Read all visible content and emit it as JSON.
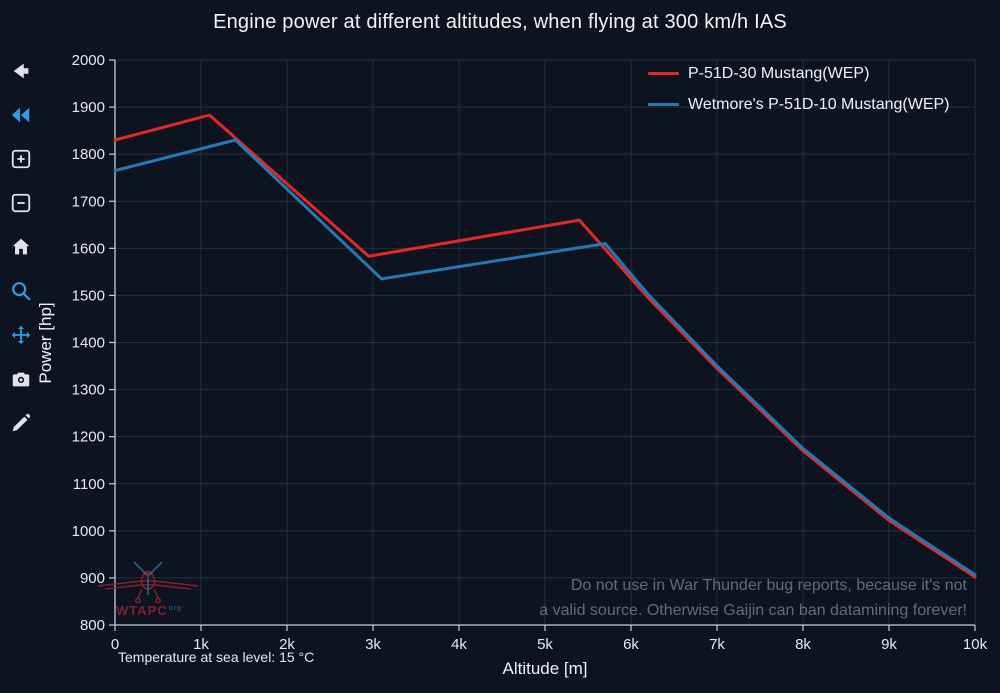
{
  "toolbar": {
    "icons": [
      "back-arrow",
      "double-chevron-left",
      "zoom-in",
      "zoom-out",
      "home",
      "magnifier",
      "pan-move",
      "camera",
      "pencil"
    ]
  },
  "chart_data": {
    "type": "line",
    "title": "Engine power at different altitudes, when flying at 300 km/h IAS",
    "xlabel": "Altitude [m]",
    "ylabel": "Power [hp]",
    "xlim": [
      0,
      10000
    ],
    "ylim": [
      800,
      2000
    ],
    "x_tick_step": 1000,
    "y_tick_step": 100,
    "x_ticks": [
      "0",
      "1k",
      "2k",
      "3k",
      "4k",
      "5k",
      "6k",
      "7k",
      "8k",
      "9k",
      "10k"
    ],
    "grid": true,
    "legend_position": "top-right-inside",
    "series": [
      {
        "name": "P-51D-30 Mustang(WEP)",
        "color": "#e12828",
        "points": [
          [
            0,
            1830
          ],
          [
            1100,
            1883
          ],
          [
            2950,
            1583
          ],
          [
            5400,
            1660
          ],
          [
            6200,
            1495
          ],
          [
            7000,
            1345
          ],
          [
            8000,
            1170
          ],
          [
            9000,
            1022
          ],
          [
            10000,
            902
          ]
        ]
      },
      {
        "name": "Wetmore's P-51D-10 Mustang(WEP)",
        "color": "#2479b4",
        "points": [
          [
            0,
            1765
          ],
          [
            1400,
            1830
          ],
          [
            3100,
            1535
          ],
          [
            5700,
            1610
          ],
          [
            6200,
            1502
          ],
          [
            7000,
            1350
          ],
          [
            8000,
            1175
          ],
          [
            9000,
            1027
          ],
          [
            10000,
            907
          ]
        ]
      }
    ]
  },
  "annotations": {
    "temperature_note": "Temperature at sea level: 15 °C"
  },
  "watermark": {
    "line1": "Do not use in War Thunder bug reports, because it's not",
    "line2": "a valid source. Otherwise Gaijin can ban datamining forever!",
    "logo_text": "WTAPC",
    "logo_sup": "org"
  },
  "colors": {
    "background": "#0d1420",
    "grid": "#232e41",
    "axis": "#c3ccd9",
    "tick_text": "#e4e8ee",
    "icon_white": "#dfe4ec",
    "icon_blue": "#2f9be0",
    "watermark_text": "#949ead"
  }
}
